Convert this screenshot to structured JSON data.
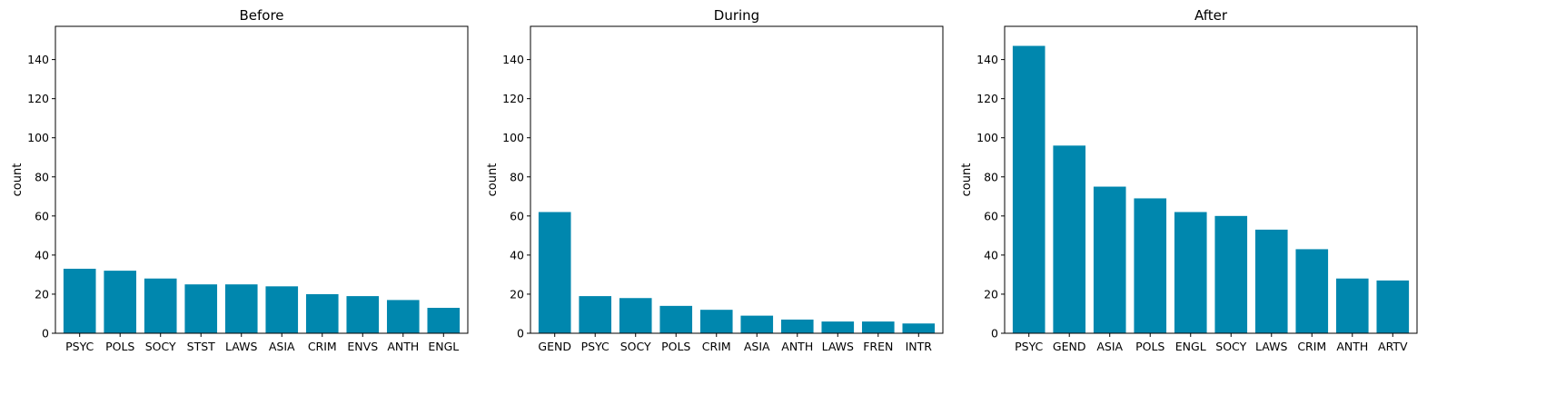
{
  "chart_data": [
    {
      "type": "bar",
      "title": "Before",
      "ylabel": "count",
      "xlabel": "",
      "ylim": [
        0,
        157
      ],
      "yticks": [
        0,
        20,
        40,
        60,
        80,
        100,
        120,
        140
      ],
      "grid": false,
      "bar_color": "#0087ae",
      "categories": [
        "PSYC",
        "POLS",
        "SOCY",
        "STST",
        "LAWS",
        "ASIA",
        "CRIM",
        "ENVS",
        "ANTH",
        "ENGL"
      ],
      "values": [
        33,
        32,
        28,
        25,
        25,
        24,
        20,
        19,
        17,
        13
      ]
    },
    {
      "type": "bar",
      "title": "During",
      "ylabel": "count",
      "xlabel": "",
      "ylim": [
        0,
        157
      ],
      "yticks": [
        0,
        20,
        40,
        60,
        80,
        100,
        120,
        140
      ],
      "grid": false,
      "bar_color": "#0087ae",
      "categories": [
        "GEND",
        "PSYC",
        "SOCY",
        "POLS",
        "CRIM",
        "ASIA",
        "ANTH",
        "LAWS",
        "FREN",
        "INTR"
      ],
      "values": [
        62,
        19,
        18,
        14,
        12,
        9,
        7,
        6,
        6,
        5
      ]
    },
    {
      "type": "bar",
      "title": "After",
      "ylabel": "count",
      "xlabel": "",
      "ylim": [
        0,
        157
      ],
      "yticks": [
        0,
        20,
        40,
        60,
        80,
        100,
        120,
        140
      ],
      "grid": false,
      "bar_color": "#0087ae",
      "categories": [
        "PSYC",
        "GEND",
        "ASIA",
        "POLS",
        "ENGL",
        "SOCY",
        "LAWS",
        "CRIM",
        "ANTH",
        "ARTV"
      ],
      "values": [
        147,
        96,
        75,
        69,
        62,
        60,
        53,
        43,
        28,
        27
      ]
    }
  ]
}
